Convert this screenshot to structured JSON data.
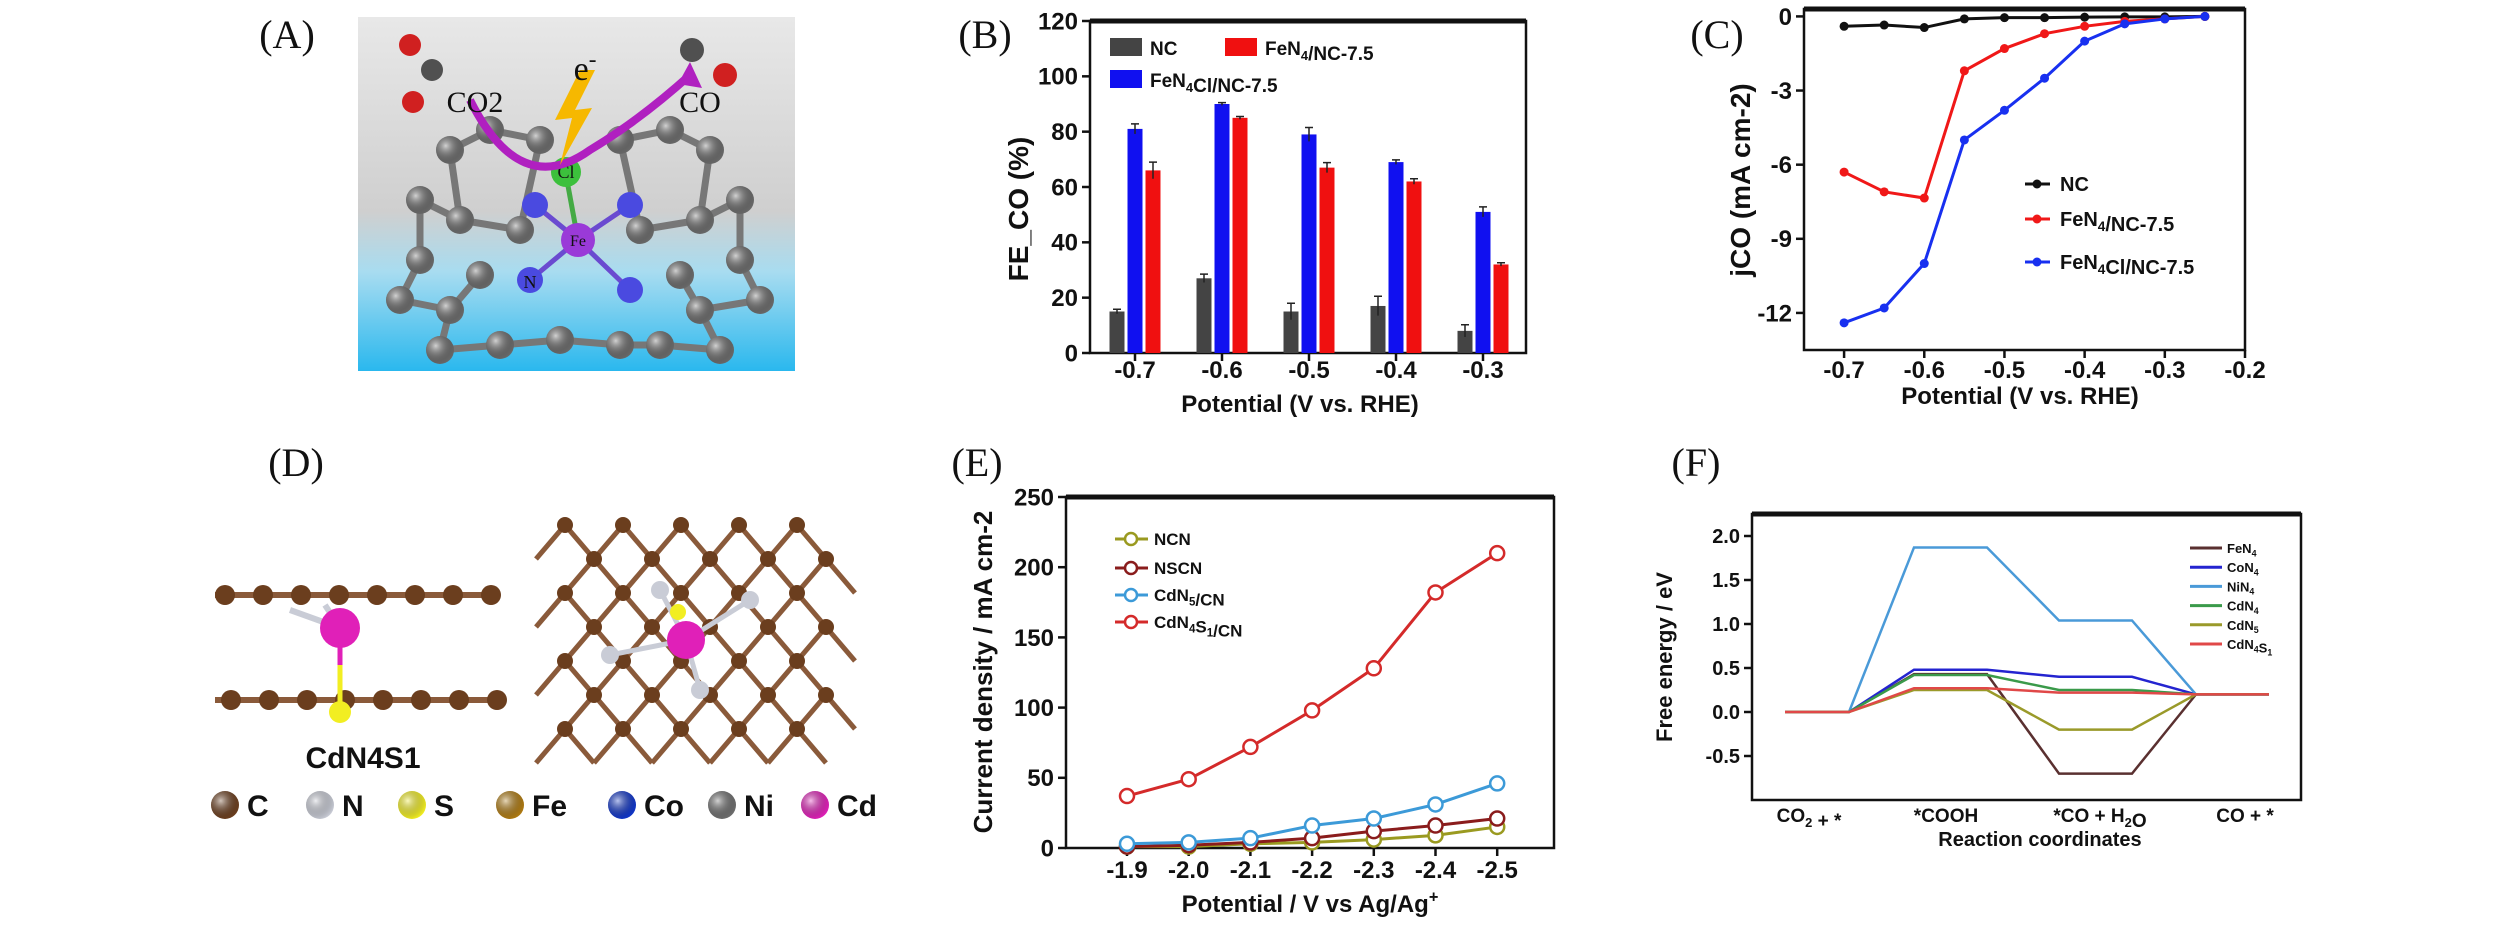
{
  "panel_labels": [
    "(A)",
    "(B)",
    "(C)",
    "(D)",
    "(E)",
    "(F)"
  ],
  "illustration_a": {
    "labels": {
      "co2": "CO2",
      "electron": "e-",
      "co": "CO",
      "cl": "Cl",
      "fe": "Fe",
      "n": "N"
    }
  },
  "illustration_d": {
    "caption": "CdN4S1",
    "legend": [
      {
        "label": "C",
        "color": "#6b3e1e"
      },
      {
        "label": "N",
        "color": "#c9ccd6"
      },
      {
        "label": "S",
        "color": "#f2ee22"
      },
      {
        "label": "Fe",
        "color": "#b07b12"
      },
      {
        "label": "Co",
        "color": "#1136c8"
      },
      {
        "label": "Ni",
        "color": "#6e6e6e"
      },
      {
        "label": "Cd",
        "color": "#e020b8"
      }
    ]
  },
  "chart_data": [
    {
      "id": "B",
      "type": "bar",
      "ylabel": "FE_CO (%)",
      "xlabel": "Potential (V vs. RHE)",
      "categories": [
        "-0.7",
        "-0.6",
        "-0.5",
        "-0.4",
        "-0.3"
      ],
      "ylim": [
        0,
        120
      ],
      "yticks": [
        0,
        20,
        40,
        60,
        80,
        100,
        120
      ],
      "legend_position": "top-left",
      "series": [
        {
          "name": "NC",
          "color": "#444444",
          "values": [
            15,
            27,
            15,
            17,
            8
          ],
          "errors": [
            0.8,
            1.5,
            3,
            3.5,
            2.2
          ]
        },
        {
          "name": "FeN4Cl/NC-7.5",
          "color": "#1010f0",
          "values": [
            81,
            90,
            79,
            69,
            51
          ],
          "errors": [
            1.8,
            0.5,
            2.5,
            0.8,
            1.8
          ]
        },
        {
          "name": "FeN4/NC-7.5",
          "color": "#f01010",
          "values": [
            66,
            85,
            67,
            62,
            32
          ],
          "errors": [
            3,
            0.5,
            1.8,
            1,
            0.6
          ]
        }
      ]
    },
    {
      "id": "C",
      "type": "line",
      "ylabel": "jCO (mA cm-2)",
      "xlabel": "Potential (V vs. RHE)",
      "xlim": [
        -0.75,
        -0.2
      ],
      "ylim": [
        -13.5,
        0.3
      ],
      "xticks": [
        -0.7,
        -0.6,
        -0.5,
        -0.4,
        -0.3,
        -0.2
      ],
      "yticks": [
        0,
        -3,
        -6,
        -9,
        -12
      ],
      "x": [
        -0.7,
        -0.65,
        -0.6,
        -0.55,
        -0.5,
        -0.45,
        -0.4,
        -0.35,
        -0.3,
        -0.25
      ],
      "legend_position": "right-middle",
      "series": [
        {
          "name": "NC",
          "color": "#111111",
          "values": [
            -0.4,
            -0.35,
            -0.45,
            -0.1,
            -0.05,
            -0.05,
            -0.03,
            -0.02,
            -0.02,
            0
          ]
        },
        {
          "name": "FeN4/NC-7.5",
          "color": "#f01818",
          "values": [
            -6.3,
            -7.1,
            -7.35,
            -2.2,
            -1.3,
            -0.7,
            -0.4,
            -0.2,
            -0.1,
            0
          ]
        },
        {
          "name": "FeN4Cl/NC-7.5",
          "color": "#1830f0",
          "values": [
            -12.4,
            -11.8,
            -10,
            -5,
            -3.8,
            -2.5,
            -1,
            -0.3,
            -0.1,
            0
          ]
        }
      ]
    },
    {
      "id": "E",
      "type": "line",
      "ylabel": "Current density / mA cm-2",
      "xlabel": "Potential / V vs Ag/Ag+",
      "categories": [
        "-1.9",
        "-2.0",
        "-2.1",
        "-2.2",
        "-2.3",
        "-2.4",
        "-2.5"
      ],
      "ylim": [
        0,
        250
      ],
      "yticks": [
        0,
        50,
        100,
        150,
        200,
        250
      ],
      "legend_position": "top-left",
      "series": [
        {
          "name": "NCN",
          "color": "#9a9a20",
          "values": [
            1,
            1,
            3,
            4,
            6,
            9,
            15
          ]
        },
        {
          "name": "NSCN",
          "color": "#8a1c1c",
          "values": [
            1,
            2,
            4,
            7,
            12,
            16,
            21
          ]
        },
        {
          "name": "CdN5/CN",
          "color": "#3c9ad8",
          "values": [
            3,
            4,
            7,
            16,
            21,
            31,
            46
          ]
        },
        {
          "name": "CdN4S1/CN",
          "color": "#d42a2a",
          "values": [
            37,
            49,
            72,
            98,
            128,
            182,
            210
          ]
        }
      ]
    },
    {
      "id": "F",
      "type": "line",
      "ylabel": "Free energy / eV",
      "xlabel": "Reaction coordinates",
      "categories": [
        "CO2 + *",
        "*COOH",
        "*CO + H2O",
        "CO + *"
      ],
      "ylim": [
        -1.0,
        2.25
      ],
      "yticks": [
        -0.5,
        0.0,
        0.5,
        1.0,
        1.5,
        2.0
      ],
      "legend_position": "top-right",
      "series": [
        {
          "name": "FeN4",
          "color": "#5a3030",
          "values": [
            0,
            0.43,
            -0.7,
            0.2
          ]
        },
        {
          "name": "CoN4",
          "color": "#2424d0",
          "values": [
            0,
            0.48,
            0.4,
            0.2
          ]
        },
        {
          "name": "NiN4",
          "color": "#4a9ad8",
          "values": [
            0,
            1.87,
            1.04,
            0.2
          ]
        },
        {
          "name": "CdN4",
          "color": "#3a9a4a",
          "values": [
            0,
            0.42,
            0.25,
            0.2
          ]
        },
        {
          "name": "CdN5",
          "color": "#9a9a2a",
          "values": [
            0,
            0.25,
            -0.2,
            0.2
          ]
        },
        {
          "name": "CdN4S1",
          "color": "#e04848",
          "values": [
            0,
            0.27,
            0.22,
            0.2
          ]
        }
      ]
    }
  ]
}
